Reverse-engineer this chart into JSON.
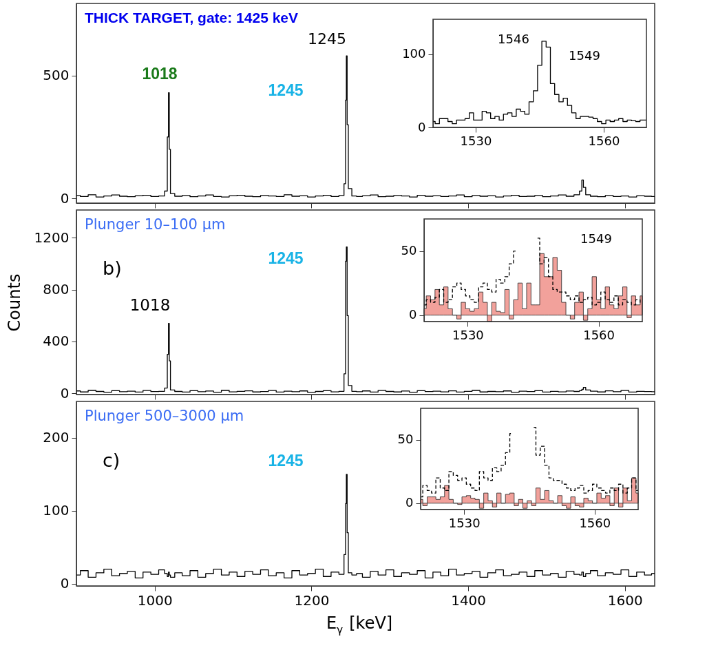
{
  "chart_data": [
    {
      "type": "step",
      "title": "THICK TARGET, gate: 1425 keV",
      "xlim": [
        900,
        1638
      ],
      "ylim": [
        -19,
        793
      ],
      "xticks": [
        1000,
        1200,
        1400,
        1600
      ],
      "yticks": [
        0,
        500
      ],
      "tick_labels": "y",
      "x": [
        900,
        910,
        920,
        930,
        940,
        950,
        960,
        970,
        980,
        990,
        1000,
        1010,
        1015,
        1017,
        1018,
        1019,
        1021,
        1030,
        1040,
        1050,
        1060,
        1070,
        1080,
        1090,
        1100,
        1110,
        1120,
        1130,
        1140,
        1150,
        1160,
        1170,
        1180,
        1190,
        1200,
        1210,
        1220,
        1230,
        1240,
        1243,
        1244,
        1245,
        1246,
        1248,
        1255,
        1260,
        1270,
        1280,
        1290,
        1300,
        1310,
        1320,
        1330,
        1340,
        1350,
        1360,
        1370,
        1380,
        1390,
        1400,
        1410,
        1420,
        1430,
        1440,
        1450,
        1460,
        1470,
        1480,
        1490,
        1500,
        1510,
        1520,
        1530,
        1540,
        1544,
        1546,
        1548,
        1552,
        1560,
        1570,
        1580,
        1590,
        1600,
        1610,
        1620,
        1630,
        1638
      ],
      "series": [
        {
          "color": "#000000",
          "line_style": "solid",
          "values": [
            12,
            8,
            15,
            6,
            10,
            14,
            9,
            7,
            11,
            13,
            8,
            10,
            30,
            250,
            430,
            200,
            20,
            9,
            12,
            7,
            10,
            14,
            8,
            6,
            11,
            13,
            9,
            7,
            12,
            10,
            8,
            15,
            9,
            11,
            6,
            10,
            13,
            8,
            12,
            60,
            400,
            580,
            300,
            40,
            10,
            8,
            11,
            14,
            7,
            9,
            12,
            10,
            6,
            13,
            9,
            11,
            8,
            10,
            14,
            7,
            12,
            9,
            11,
            6,
            10,
            13,
            8,
            9,
            12,
            7,
            10,
            14,
            9,
            15,
            30,
            75,
            45,
            15,
            9,
            7,
            12,
            8,
            10,
            6,
            11,
            9,
            8
          ]
        }
      ],
      "annotations": [
        "1018",
        "1245",
        "1245"
      ]
    },
    {
      "type": "step",
      "xlim": [
        1520,
        1570
      ],
      "ylim": [
        0,
        148
      ],
      "xticks": [
        1530,
        1560
      ],
      "yticks": [
        0,
        100
      ],
      "x": [
        1520,
        1521,
        1522,
        1523,
        1524,
        1525,
        1526,
        1527,
        1528,
        1529,
        1530,
        1531,
        1532,
        1533,
        1534,
        1535,
        1536,
        1537,
        1538,
        1539,
        1540,
        1541,
        1542,
        1543,
        1544,
        1545,
        1546,
        1547,
        1548,
        1549,
        1550,
        1551,
        1552,
        1553,
        1554,
        1555,
        1556,
        1557,
        1558,
        1559,
        1560,
        1561,
        1562,
        1563,
        1564,
        1565,
        1566,
        1567,
        1568,
        1569,
        1570
      ],
      "series": [
        {
          "color": "#000000",
          "line_style": "solid",
          "values": [
            8,
            5,
            12,
            12,
            8,
            5,
            10,
            10,
            12,
            20,
            10,
            10,
            22,
            20,
            12,
            15,
            10,
            18,
            20,
            15,
            25,
            22,
            18,
            35,
            50,
            85,
            118,
            110,
            60,
            45,
            35,
            40,
            30,
            20,
            12,
            15,
            15,
            14,
            12,
            8,
            5,
            10,
            8,
            10,
            12,
            8,
            10,
            9,
            8,
            10,
            10
          ]
        }
      ],
      "annotations": [
        "1546",
        "1549"
      ]
    },
    {
      "type": "step",
      "title": "Plunger 10–100 µm",
      "ylabel": "Counts",
      "xlim": [
        900,
        1638
      ],
      "ylim": [
        -10,
        1415
      ],
      "xticks": [
        1000,
        1200,
        1400,
        1600
      ],
      "yticks": [
        0,
        400,
        800,
        1200
      ],
      "tick_labels": "y",
      "x": [
        900,
        910,
        920,
        930,
        940,
        950,
        960,
        970,
        980,
        990,
        1000,
        1010,
        1015,
        1017,
        1018,
        1019,
        1021,
        1030,
        1040,
        1050,
        1060,
        1070,
        1080,
        1090,
        1100,
        1110,
        1120,
        1130,
        1140,
        1150,
        1160,
        1170,
        1180,
        1190,
        1200,
        1210,
        1220,
        1230,
        1240,
        1243,
        1244,
        1245,
        1246,
        1248,
        1255,
        1260,
        1270,
        1280,
        1290,
        1300,
        1310,
        1320,
        1330,
        1340,
        1350,
        1360,
        1370,
        1380,
        1390,
        1400,
        1410,
        1420,
        1430,
        1440,
        1450,
        1460,
        1470,
        1480,
        1490,
        1500,
        1510,
        1520,
        1530,
        1540,
        1544,
        1546,
        1548,
        1552,
        1560,
        1570,
        1580,
        1590,
        1600,
        1610,
        1620,
        1630,
        1638
      ],
      "series": [
        {
          "color": "#000000",
          "line_style": "solid",
          "values": [
            18,
            10,
            22,
            14,
            8,
            20,
            12,
            16,
            9,
            21,
            13,
            15,
            40,
            300,
            540,
            250,
            25,
            14,
            9,
            20,
            12,
            17,
            8,
            22,
            11,
            15,
            19,
            10,
            13,
            21,
            9,
            16,
            12,
            18,
            7,
            14,
            20,
            11,
            15,
            150,
            1020,
            1130,
            600,
            60,
            15,
            12,
            18,
            9,
            21,
            14,
            10,
            17,
            8,
            20,
            13,
            16,
            11,
            19,
            9,
            15,
            22,
            10,
            14,
            12,
            18,
            8,
            16,
            13,
            20,
            9,
            15,
            11,
            17,
            14,
            20,
            30,
            45,
            25,
            16,
            10,
            19,
            12,
            21,
            9,
            15,
            13,
            12
          ]
        }
      ],
      "annotations": [
        "b)",
        "1018",
        "1245"
      ]
    },
    {
      "type": "step",
      "xlim": [
        1520,
        1570
      ],
      "ylim": [
        -5,
        75
      ],
      "xticks": [
        1530,
        1560
      ],
      "yticks": [
        0,
        50
      ],
      "x": [
        1520,
        1521,
        1522,
        1523,
        1524,
        1525,
        1526,
        1527,
        1528,
        1529,
        1530,
        1531,
        1532,
        1533,
        1534,
        1535,
        1536,
        1537,
        1538,
        1539,
        1540,
        1541,
        1542,
        1543,
        1544,
        1545,
        1546,
        1547,
        1548,
        1549,
        1550,
        1551,
        1552,
        1553,
        1554,
        1555,
        1556,
        1557,
        1558,
        1559,
        1560,
        1561,
        1562,
        1563,
        1564,
        1565,
        1566,
        1567,
        1568,
        1569,
        1570
      ],
      "series": [
        {
          "type": "area",
          "color": "#f2a19b",
          "values": [
            5,
            15,
            12,
            20,
            8,
            22,
            5,
            0,
            -3,
            10,
            5,
            3,
            5,
            18,
            10,
            -5,
            10,
            3,
            2,
            20,
            -3,
            12,
            25,
            5,
            25,
            8,
            8,
            48,
            30,
            30,
            45,
            35,
            10,
            0,
            -3,
            10,
            18,
            -4,
            5,
            30,
            12,
            5,
            22,
            8,
            5,
            15,
            22,
            -2,
            15,
            8,
            15
          ]
        },
        {
          "color": "#000000",
          "line_style": "dashed",
          "values": [
            8,
            12,
            10,
            14,
            20,
            10,
            12,
            22,
            25,
            20,
            15,
            12,
            10,
            22,
            25,
            20,
            18,
            28,
            25,
            30,
            40,
            50,
            null,
            null,
            null,
            null,
            60,
            40,
            45,
            30,
            20,
            18,
            18,
            15,
            12,
            15,
            10,
            12,
            14,
            8,
            10,
            18,
            12,
            10,
            15,
            8,
            12,
            10,
            8,
            12,
            10
          ]
        }
      ],
      "annotations": [
        "1549"
      ]
    },
    {
      "type": "step",
      "title": "Plunger 500–3000 µm",
      "xlabel": "E$_{γ}$ [keV]",
      "xlim": [
        900,
        1638
      ],
      "ylim": [
        -3,
        250
      ],
      "xticks": [
        1000,
        1200,
        1400,
        1600
      ],
      "yticks": [
        0,
        100,
        200
      ],
      "x": [
        900,
        910,
        920,
        930,
        940,
        950,
        960,
        970,
        980,
        990,
        1000,
        1010,
        1015,
        1017,
        1018,
        1019,
        1021,
        1030,
        1040,
        1050,
        1060,
        1070,
        1080,
        1090,
        1100,
        1110,
        1120,
        1130,
        1140,
        1150,
        1160,
        1170,
        1180,
        1190,
        1200,
        1210,
        1220,
        1230,
        1240,
        1243,
        1244,
        1245,
        1246,
        1248,
        1255,
        1260,
        1270,
        1280,
        1290,
        1300,
        1310,
        1320,
        1330,
        1340,
        1350,
        1360,
        1370,
        1380,
        1390,
        1400,
        1410,
        1420,
        1430,
        1440,
        1450,
        1460,
        1470,
        1480,
        1490,
        1500,
        1510,
        1520,
        1530,
        1540,
        1544,
        1546,
        1548,
        1552,
        1560,
        1570,
        1580,
        1590,
        1600,
        1610,
        1620,
        1630,
        1638
      ],
      "series": [
        {
          "color": "#000000",
          "line_style": "solid",
          "values": [
            12,
            18,
            9,
            15,
            20,
            11,
            14,
            17,
            8,
            16,
            13,
            19,
            14,
            10,
            16,
            12,
            9,
            15,
            11,
            18,
            9,
            14,
            20,
            12,
            16,
            10,
            17,
            13,
            19,
            11,
            15,
            8,
            18,
            12,
            14,
            20,
            10,
            16,
            13,
            40,
            110,
            150,
            70,
            15,
            12,
            14,
            9,
            17,
            12,
            19,
            10,
            15,
            13,
            18,
            8,
            16,
            11,
            20,
            12,
            14,
            17,
            9,
            15,
            19,
            11,
            13,
            16,
            10,
            18,
            12,
            14,
            9,
            17,
            13,
            12,
            16,
            10,
            14,
            18,
            11,
            15,
            13,
            19,
            10,
            16,
            12,
            14
          ]
        }
      ],
      "annotations": [
        "c)",
        "1245"
      ]
    },
    {
      "type": "step",
      "xlim": [
        1520,
        1570
      ],
      "ylim": [
        -5,
        75
      ],
      "xticks": [
        1530,
        1560
      ],
      "yticks": [
        0,
        50
      ],
      "x": [
        1520,
        1521,
        1522,
        1523,
        1524,
        1525,
        1526,
        1527,
        1528,
        1529,
        1530,
        1531,
        1532,
        1533,
        1534,
        1535,
        1536,
        1537,
        1538,
        1539,
        1540,
        1541,
        1542,
        1543,
        1544,
        1545,
        1546,
        1547,
        1548,
        1549,
        1550,
        1551,
        1552,
        1553,
        1554,
        1555,
        1556,
        1557,
        1558,
        1559,
        1560,
        1561,
        1562,
        1563,
        1564,
        1565,
        1566,
        1567,
        1568,
        1569,
        1570
      ],
      "series": [
        {
          "type": "area",
          "color": "#f2a19b",
          "values": [
            3,
            -2,
            5,
            5,
            3,
            5,
            14,
            3,
            0,
            -1,
            5,
            6,
            4,
            3,
            -4,
            8,
            2,
            -3,
            8,
            0,
            7,
            8,
            -2,
            3,
            -4,
            2,
            -2,
            12,
            3,
            10,
            2,
            0,
            6,
            -2,
            -4,
            5,
            -2,
            -3,
            4,
            2,
            0,
            8,
            4,
            6,
            -2,
            12,
            -3,
            12,
            2,
            20,
            8
          ]
        },
        {
          "color": "#000000",
          "line_style": "dashed",
          "values": [
            5,
            14,
            10,
            8,
            20,
            12,
            10,
            25,
            22,
            18,
            20,
            15,
            12,
            10,
            25,
            20,
            18,
            28,
            25,
            30,
            40,
            55,
            null,
            null,
            null,
            null,
            60,
            38,
            45,
            30,
            20,
            18,
            18,
            15,
            12,
            10,
            12,
            14,
            8,
            10,
            15,
            12,
            10,
            8,
            12,
            10,
            15,
            8,
            12,
            20,
            10
          ]
        }
      ]
    }
  ]
}
